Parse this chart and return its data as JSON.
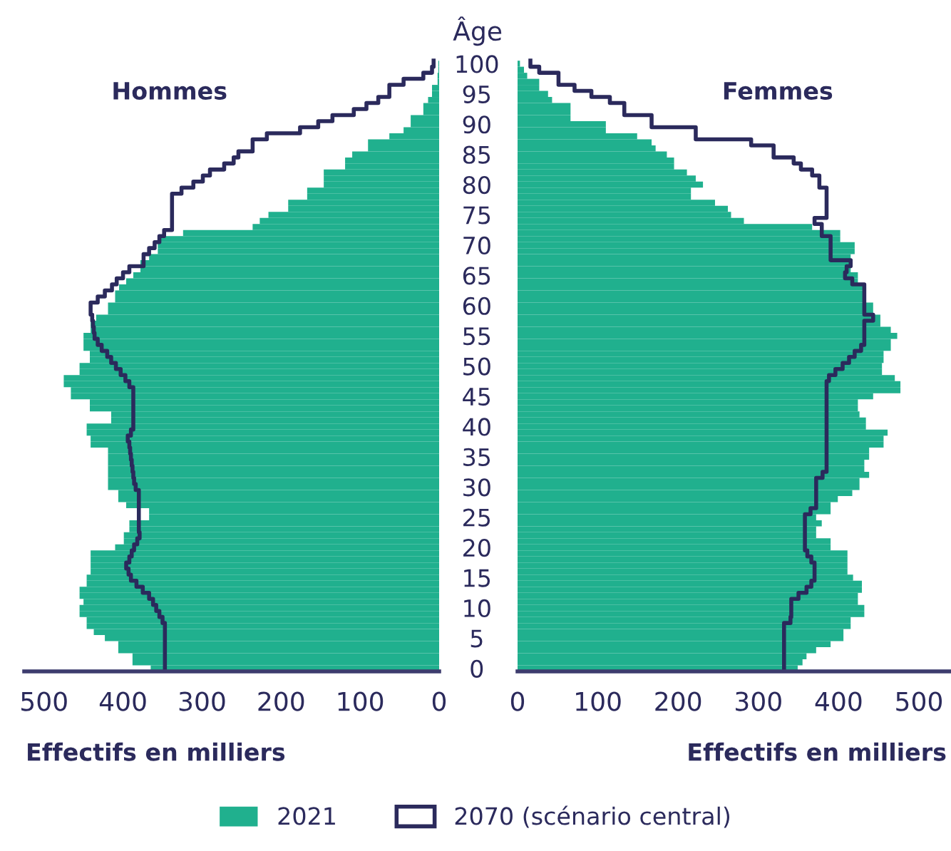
{
  "chart_data": [
    {
      "type": "bar",
      "orientation": "horizontal",
      "title": "Hommes",
      "xlabel": "Effectifs en milliers",
      "ylabel": "Âge",
      "categories": [
        "100",
        null,
        null,
        null,
        null,
        "95",
        null,
        null,
        null,
        null,
        "90",
        null,
        null,
        null,
        null,
        "85",
        null,
        null,
        null,
        null,
        "80",
        null,
        null,
        null,
        null,
        "75",
        null,
        null,
        null,
        null,
        "70",
        null,
        null,
        null,
        null,
        "65",
        null,
        null,
        null,
        null,
        "60",
        null,
        null,
        null,
        null,
        "55",
        null,
        null,
        null,
        null,
        "50",
        null,
        null,
        null,
        null,
        "45",
        null,
        null,
        null,
        null,
        "40",
        null,
        null,
        null,
        null,
        "35",
        null,
        null,
        null,
        null,
        "30",
        null,
        null,
        null,
        null,
        "25",
        null,
        null,
        null,
        null,
        "20",
        null,
        null,
        null,
        null,
        "15",
        null,
        null,
        null,
        null,
        "10",
        null,
        null,
        null,
        null,
        "5",
        null,
        null,
        null,
        null,
        "0"
      ],
      "series": [
        {
          "name": "2021",
          "color": "#20b08e",
          "values": [
            1,
            1,
            2,
            2,
            9,
            9,
            14,
            20,
            20,
            36,
            36,
            45,
            63,
            90,
            90,
            110,
            119,
            119,
            146,
            146,
            146,
            167,
            167,
            191,
            191,
            216,
            227,
            236,
            324,
            356,
            356,
            356,
            367,
            378,
            378,
            387,
            396,
            405,
            410,
            410,
            419,
            419,
            434,
            441,
            441,
            450,
            450,
            450,
            442,
            442,
            455,
            455,
            475,
            475,
            466,
            466,
            442,
            442,
            415,
            415,
            446,
            446,
            441,
            441,
            419,
            419,
            419,
            419,
            419,
            419,
            419,
            406,
            406,
            396,
            367,
            367,
            392,
            392,
            399,
            399,
            410,
            441,
            441,
            441,
            441,
            446,
            446,
            455,
            455,
            450,
            455,
            455,
            446,
            446,
            437,
            423,
            406,
            406,
            388,
            388,
            365
          ]
        },
        {
          "name": "2070 (scénario central)",
          "type": "step",
          "color": "#2b2a5c",
          "values": [
            7,
            9,
            20,
            45,
            63,
            63,
            77,
            92,
            108,
            135,
            153,
            176,
            218,
            236,
            236,
            254,
            260,
            272,
            290,
            299,
            311,
            326,
            338,
            338,
            338,
            338,
            338,
            338,
            348,
            354,
            360,
            367,
            374,
            374,
            392,
            400,
            408,
            414,
            423,
            432,
            441,
            441,
            439,
            438,
            437,
            436,
            432,
            427,
            420,
            415,
            409,
            403,
            397,
            392,
            387,
            387,
            387,
            387,
            387,
            387,
            387,
            390,
            394,
            392,
            391,
            390,
            389,
            388,
            387,
            386,
            384,
            380,
            380,
            380,
            380,
            380,
            380,
            380,
            379,
            382,
            386,
            389,
            392,
            396,
            393,
            390,
            383,
            375,
            367,
            362,
            358,
            354,
            350,
            347,
            347,
            347,
            347,
            347,
            347,
            347,
            347
          ]
        }
      ],
      "xlim": [
        525,
        0
      ],
      "xticks": [
        500,
        400,
        300,
        200,
        100,
        0
      ],
      "legend": "bottom",
      "grid": false
    },
    {
      "type": "bar",
      "orientation": "horizontal",
      "title": "Femmes",
      "xlabel": "Effectifs en milliers",
      "categories": [
        "100",
        null,
        null,
        null,
        null,
        "95",
        null,
        null,
        null,
        null,
        "90",
        null,
        null,
        null,
        null,
        "85",
        null,
        null,
        null,
        null,
        "80",
        null,
        null,
        null,
        null,
        "75",
        null,
        null,
        null,
        null,
        "70",
        null,
        null,
        null,
        null,
        "65",
        null,
        null,
        null,
        null,
        "60",
        null,
        null,
        null,
        null,
        "55",
        null,
        null,
        null,
        null,
        "50",
        null,
        null,
        null,
        null,
        "45",
        null,
        null,
        null,
        null,
        "40",
        null,
        null,
        null,
        null,
        "35",
        null,
        null,
        null,
        null,
        "30",
        null,
        null,
        null,
        null,
        "25",
        null,
        null,
        null,
        null,
        "20",
        null,
        null,
        null,
        null,
        "15",
        null,
        null,
        null,
        null,
        "10",
        null,
        null,
        null,
        null,
        "5",
        null,
        null,
        null,
        null,
        "0"
      ],
      "series": [
        {
          "color": "#20b08e",
          "values": [
            3,
            8,
            12,
            27,
            27,
            38,
            43,
            66,
            66,
            66,
            110,
            110,
            149,
            167,
            172,
            186,
            195,
            195,
            211,
            222,
            231,
            216,
            216,
            246,
            262,
            266,
            282,
            367,
            402,
            402,
            420,
            420,
            415,
            415,
            415,
            424,
            424,
            432,
            432,
            434,
            443,
            443,
            452,
            452,
            465,
            473,
            465,
            465,
            456,
            456,
            454,
            454,
            470,
            477,
            477,
            443,
            424,
            424,
            426,
            434,
            434,
            461,
            456,
            456,
            438,
            438,
            432,
            432,
            438,
            426,
            426,
            417,
            399,
            390,
            390,
            372,
            379,
            372,
            372,
            390,
            390,
            411,
            411,
            411,
            411,
            418,
            429,
            429,
            424,
            424,
            432,
            432,
            415,
            415,
            406,
            406,
            390,
            372,
            360,
            355,
            349
          ]
        },
        {
          "type": "step",
          "color": "#2b2a5c",
          "values": [
            16,
            27,
            51,
            51,
            71,
            92,
            115,
            133,
            133,
            167,
            167,
            222,
            222,
            291,
            319,
            319,
            344,
            353,
            367,
            376,
            376,
            385,
            385,
            385,
            385,
            385,
            370,
            379,
            379,
            390,
            390,
            390,
            390,
            415,
            410,
            408,
            417,
            432,
            432,
            432,
            432,
            432,
            443,
            432,
            432,
            432,
            432,
            428,
            420,
            413,
            405,
            396,
            388,
            385,
            385,
            385,
            385,
            385,
            385,
            385,
            385,
            385,
            385,
            385,
            385,
            385,
            385,
            385,
            380,
            372,
            372,
            372,
            372,
            372,
            365,
            358,
            358,
            358,
            358,
            358,
            358,
            361,
            366,
            370,
            370,
            370,
            366,
            360,
            350,
            341,
            341,
            341,
            340,
            332,
            332,
            332,
            332,
            332,
            332,
            332,
            332
          ]
        }
      ],
      "xlim": [
        0,
        540
      ],
      "xticks": [
        0,
        100,
        200,
        300,
        400,
        500
      ],
      "tick_labels": "x",
      "legend": false,
      "grid": false
    }
  ]
}
